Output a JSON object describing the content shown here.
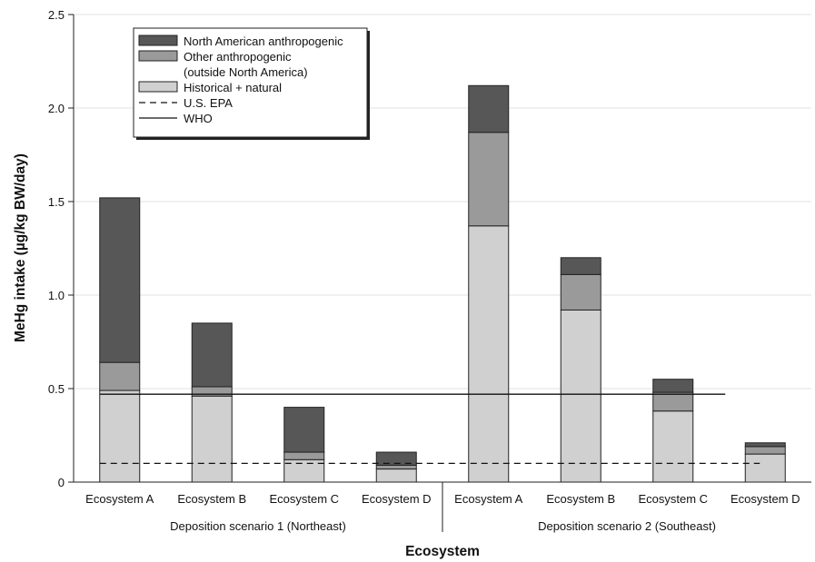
{
  "chart_data": {
    "type": "bar",
    "stacked": true,
    "xlabel": "Ecosystem",
    "ylabel": "MeHg intake (µg/kg BW/day)",
    "ylim": [
      0,
      2.5
    ],
    "yticks": [
      0,
      0.5,
      1.0,
      1.5,
      2.0,
      2.5
    ],
    "ytick_labels": [
      "0",
      "0.5",
      "1.0",
      "1.5",
      "2.0",
      "2.5"
    ],
    "grid": true,
    "legend_position": "top-left",
    "categories": [
      "Ecosystem A",
      "Ecosystem B",
      "Ecosystem C",
      "Ecosystem D",
      "Ecosystem A",
      "Ecosystem B",
      "Ecosystem C",
      "Ecosystem D"
    ],
    "groups": [
      {
        "label": "Deposition scenario 1 (Northeast)",
        "start": 0,
        "end": 3
      },
      {
        "label": "Deposition scenario 2 (Southeast)",
        "start": 4,
        "end": 7
      }
    ],
    "series": [
      {
        "name": "Historical + natural",
        "color": "#d0d0d0",
        "values": [
          0.49,
          0.46,
          0.12,
          0.07,
          1.37,
          0.92,
          0.38,
          0.15
        ]
      },
      {
        "name": "Other anthropogenic (outside North America)",
        "color": "#9a9a9a",
        "values": [
          0.15,
          0.05,
          0.04,
          0.02,
          0.5,
          0.19,
          0.1,
          0.04
        ]
      },
      {
        "name": "North American anthropogenic",
        "color": "#575757",
        "values": [
          0.88,
          0.34,
          0.24,
          0.07,
          0.25,
          0.09,
          0.07,
          0.02
        ]
      }
    ],
    "reference_lines": [
      {
        "name": "U.S. EPA",
        "value": 0.1,
        "style": "dashed"
      },
      {
        "name": "WHO",
        "value": 0.47,
        "style": "solid"
      }
    ],
    "legend": [
      {
        "label_lines": [
          "North American anthropogenic"
        ],
        "kind": "swatch",
        "color": "#575757"
      },
      {
        "label_lines": [
          "Other anthropogenic",
          "(outside North America)"
        ],
        "kind": "swatch",
        "color": "#9a9a9a"
      },
      {
        "label_lines": [
          "Historical + natural"
        ],
        "kind": "swatch",
        "color": "#d0d0d0"
      },
      {
        "label_lines": [
          "U.S. EPA"
        ],
        "kind": "dashed"
      },
      {
        "label_lines": [
          "WHO"
        ],
        "kind": "solid"
      }
    ]
  }
}
